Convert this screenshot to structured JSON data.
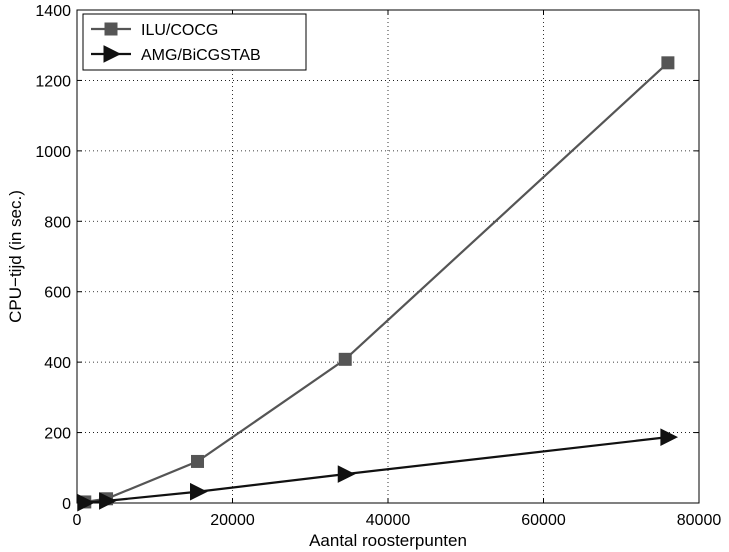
{
  "chart_data": {
    "type": "line",
    "xlabel": "Aantal roosterpunten",
    "ylabel": "CPU−tijd (in sec.)",
    "xlim": [
      0,
      80000
    ],
    "ylim": [
      0,
      1400
    ],
    "xticks": [
      0,
      20000,
      40000,
      60000,
      80000
    ],
    "xtick_labels": [
      "0",
      "20000",
      "40000",
      "60000",
      "80000"
    ],
    "yticks": [
      0,
      200,
      400,
      600,
      800,
      1000,
      1200,
      1400
    ],
    "ytick_labels": [
      "0",
      "200",
      "400",
      "600",
      "800",
      "1000",
      "1200",
      "1400"
    ],
    "grid": true,
    "legend_position": "top-left",
    "series": [
      {
        "name": "ILU/COCG",
        "marker": "square",
        "color": "#555555",
        "x": [
          1000,
          3800,
          15500,
          34500,
          76000
        ],
        "y": [
          3,
          12,
          118,
          408,
          1250
        ]
      },
      {
        "name": "AMG/BiCGSTAB",
        "marker": "triangle-right",
        "color": "#111111",
        "x": [
          1000,
          3800,
          15500,
          34500,
          76000
        ],
        "y": [
          1,
          6,
          32,
          82,
          187
        ]
      }
    ]
  }
}
